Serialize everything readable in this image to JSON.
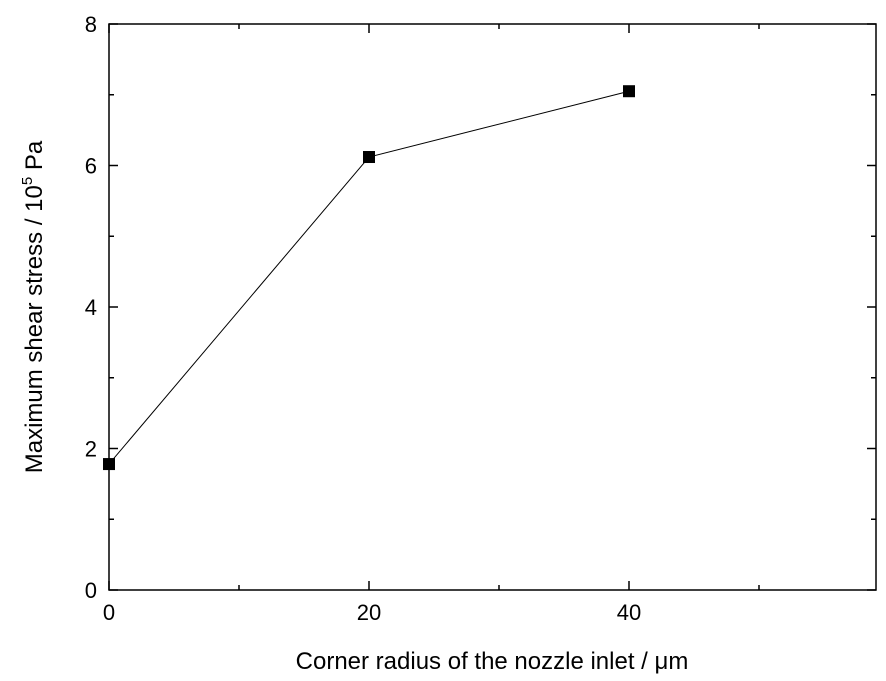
{
  "chart_data": {
    "type": "line",
    "title": "",
    "xlabel": "Corner radius of the nozzle inlet / μm",
    "ylabel": {
      "prefix": "Maximum shear stress / 10",
      "superscript": "5",
      "suffix": " Pa"
    },
    "xlim": [
      0,
      59
    ],
    "ylim": [
      0,
      8
    ],
    "x_major_ticks": [
      0,
      20,
      40
    ],
    "x_minor_ticks": [
      10,
      30,
      50
    ],
    "y_major_ticks": [
      0,
      2,
      4,
      6,
      8
    ],
    "y_minor_ticks": [
      1,
      3,
      5,
      7
    ],
    "grid": false,
    "series": [
      {
        "marker": "square",
        "color": "#000000",
        "x": [
          0,
          20,
          40
        ],
        "y": [
          1.78,
          6.12,
          7.05
        ]
      }
    ]
  }
}
